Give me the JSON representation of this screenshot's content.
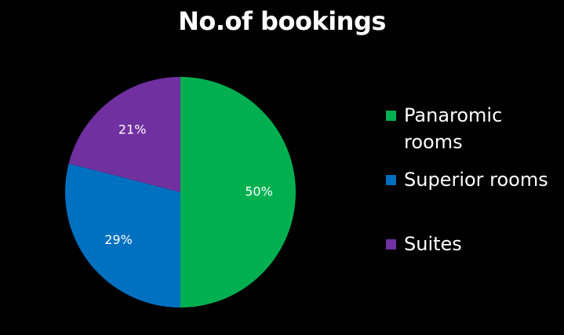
{
  "chart_data": {
    "type": "pie",
    "title": "No.of bookings",
    "categories": [
      "Panaromic rooms",
      "Superior rooms",
      "Suites"
    ],
    "values": [
      50,
      29,
      21
    ],
    "labels": [
      "50%",
      "29%",
      "21%"
    ],
    "colors": [
      "#00B050",
      "#0070C0",
      "#7030A0"
    ],
    "start": "12 o'clock, clockwise",
    "legend_position": "right"
  }
}
